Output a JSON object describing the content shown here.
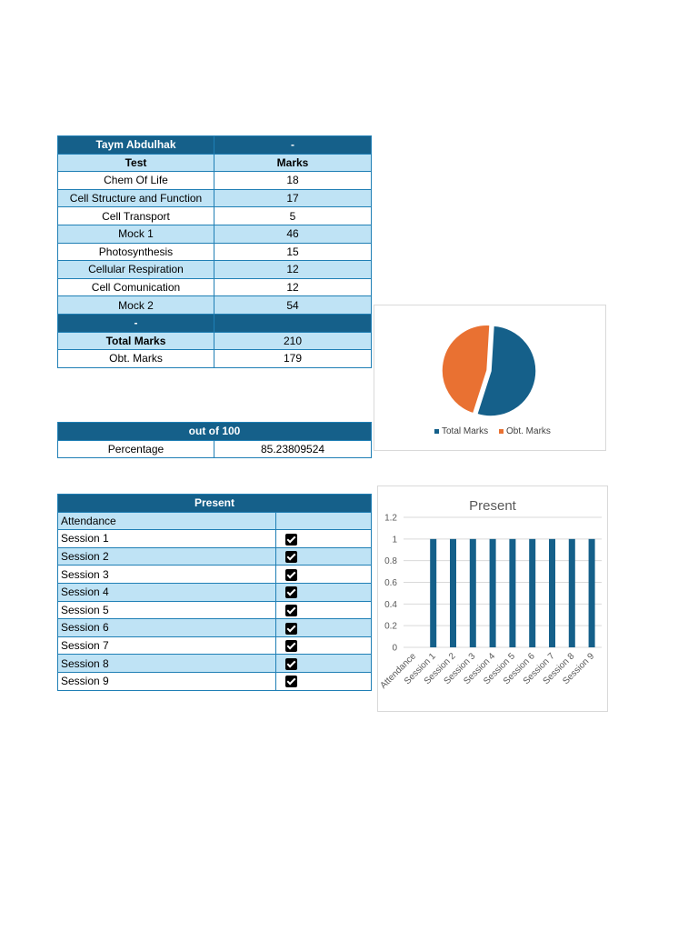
{
  "marks_table": {
    "student_name": "Taym Abdulhak",
    "student_extra": "-",
    "col_test": "Test",
    "col_marks": "Marks",
    "rows": [
      {
        "test": "Chem Of Life",
        "marks": "18"
      },
      {
        "test": "Cell Structure and Function",
        "marks": "17"
      },
      {
        "test": "Cell Transport",
        "marks": "5"
      },
      {
        "test": "Mock 1",
        "marks": "46"
      },
      {
        "test": "Photosynthesis",
        "marks": "15"
      },
      {
        "test": "Cellular Respiration",
        "marks": "12"
      },
      {
        "test": "Cell Comunication",
        "marks": "12"
      },
      {
        "test": "Mock 2",
        "marks": "54"
      }
    ],
    "separator_label": "-",
    "total_label": "Total Marks",
    "total_value": "210",
    "obtained_label": "Obt. Marks",
    "obtained_value": "179"
  },
  "percentage_table": {
    "header": "out of 100",
    "label": "Percentage",
    "value": "85.23809524"
  },
  "attendance_table": {
    "header": "Present",
    "attendance_label": "Attendance",
    "sessions": [
      {
        "label": "Session 1",
        "present": true
      },
      {
        "label": "Session 2",
        "present": true
      },
      {
        "label": "Session 3",
        "present": true
      },
      {
        "label": "Session 4",
        "present": true
      },
      {
        "label": "Session 5",
        "present": true
      },
      {
        "label": "Session 6",
        "present": true
      },
      {
        "label": "Session 7",
        "present": true
      },
      {
        "label": "Session 8",
        "present": true
      },
      {
        "label": "Session 9",
        "present": true
      }
    ]
  },
  "chart_data": [
    {
      "type": "pie",
      "title": "",
      "labels": [
        "Total Marks",
        "Obt. Marks"
      ],
      "values": [
        210,
        179
      ],
      "colors": [
        "#15608a",
        "#e97132"
      ],
      "legend": "bottom"
    },
    {
      "type": "bar",
      "title": "Present",
      "categories": [
        "Attendance",
        "Session 1",
        "Session 2",
        "Session 3",
        "Session 4",
        "Session 5",
        "Session 6",
        "Session 7",
        "Session 8",
        "Session 9"
      ],
      "values": [
        0,
        1,
        1,
        1,
        1,
        1,
        1,
        1,
        1,
        1
      ],
      "ylim": [
        0,
        1.2
      ],
      "yticks": [
        "0",
        "0.2",
        "0.4",
        "0.6",
        "0.8",
        "1",
        "1.2"
      ],
      "grid": true,
      "color": "#15608a"
    }
  ]
}
